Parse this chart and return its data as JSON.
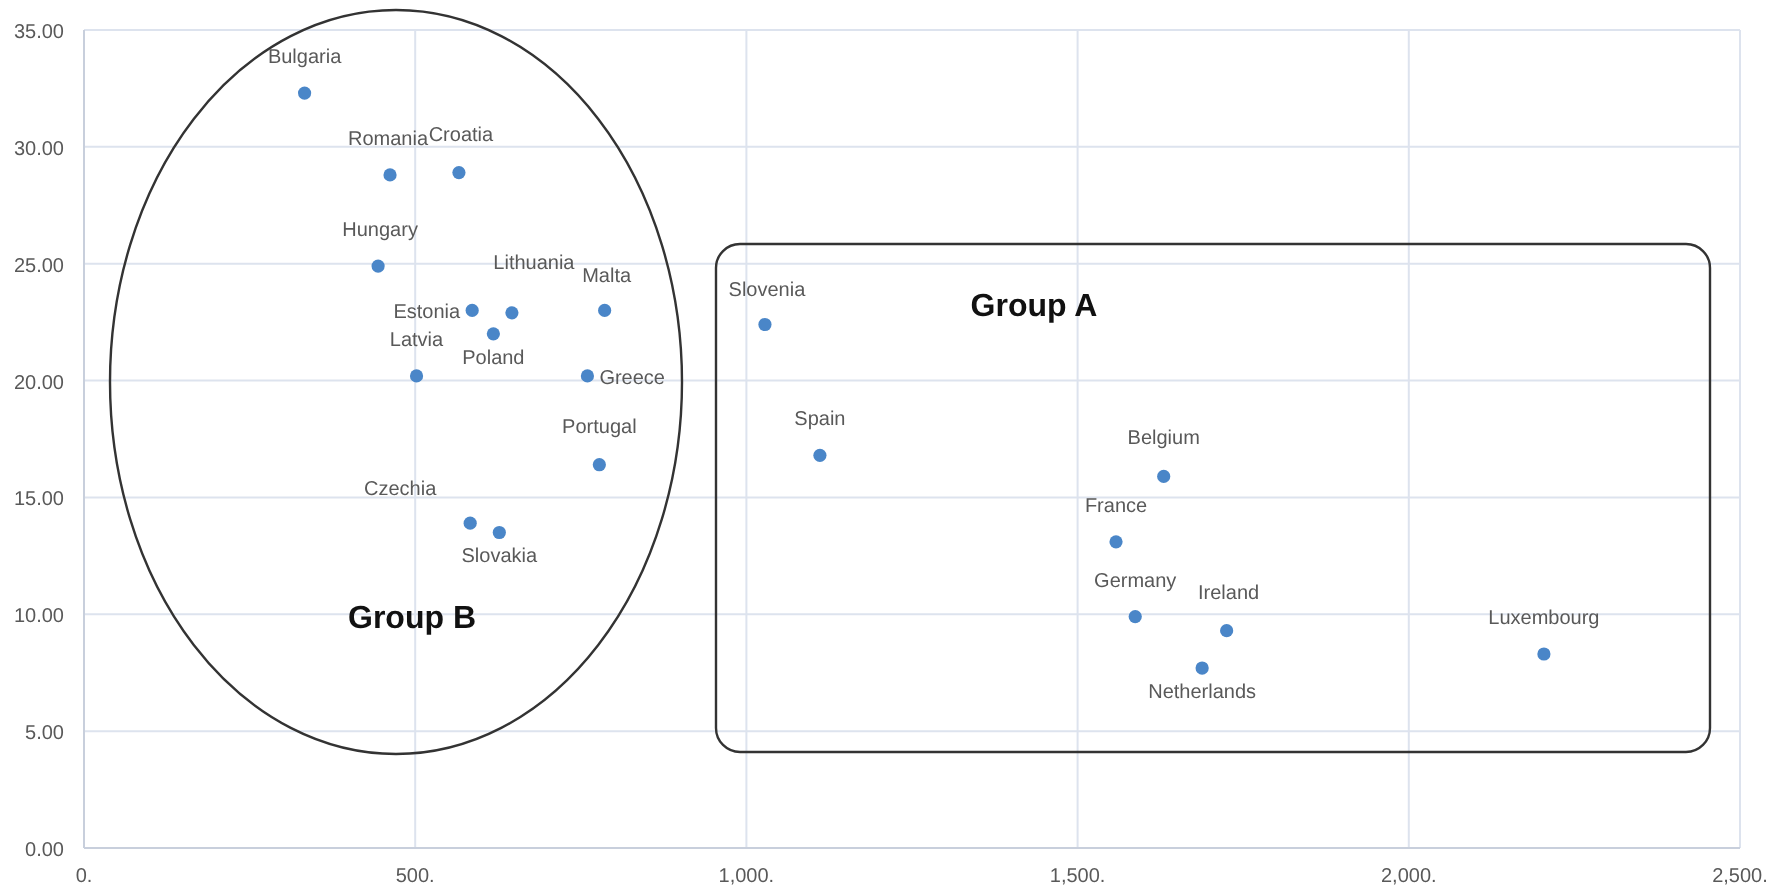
{
  "chart_data": {
    "type": "scatter",
    "series": [
      {
        "name": "Bulgaria",
        "color": "#4a86c8",
        "x": [
          333
        ],
        "values": [
          32.3
        ]
      },
      {
        "name": "Romania",
        "color": "#4a86c8",
        "x": [
          462
        ],
        "values": [
          28.8
        ]
      },
      {
        "name": "Croatia",
        "color": "#4a86c8",
        "x": [
          566
        ],
        "values": [
          28.9
        ]
      },
      {
        "name": "Hungary",
        "color": "#4a86c8",
        "x": [
          444
        ],
        "values": [
          24.9
        ]
      },
      {
        "name": "Estonia",
        "color": "#4a86c8",
        "x": [
          586
        ],
        "values": [
          23.0
        ]
      },
      {
        "name": "Lithuania",
        "color": "#4a86c8",
        "x": [
          646
        ],
        "values": [
          22.9
        ]
      },
      {
        "name": "Poland",
        "color": "#4a86c8",
        "x": [
          618
        ],
        "values": [
          22.0
        ]
      },
      {
        "name": "Malta",
        "color": "#4a86c8",
        "x": [
          786
        ],
        "values": [
          23.0
        ]
      },
      {
        "name": "Latvia",
        "color": "#4a86c8",
        "x": [
          502
        ],
        "values": [
          20.2
        ]
      },
      {
        "name": "Greece",
        "color": "#4a86c8",
        "x": [
          760
        ],
        "values": [
          20.2
        ]
      },
      {
        "name": "Portugal",
        "color": "#4a86c8",
        "x": [
          778
        ],
        "values": [
          16.4
        ]
      },
      {
        "name": "Czechia",
        "color": "#4a86c8",
        "x": [
          583
        ],
        "values": [
          13.9
        ]
      },
      {
        "name": "Slovakia",
        "color": "#4a86c8",
        "x": [
          627
        ],
        "values": [
          13.5
        ]
      },
      {
        "name": "Slovenia",
        "color": "#4a86c8",
        "x": [
          1028
        ],
        "values": [
          22.4
        ]
      },
      {
        "name": "Spain",
        "color": "#4a86c8",
        "x": [
          1111
        ],
        "values": [
          16.8
        ]
      },
      {
        "name": "Belgium",
        "color": "#4a86c8",
        "x": [
          1630
        ],
        "values": [
          15.9
        ]
      },
      {
        "name": "France",
        "color": "#4a86c8",
        "x": [
          1558
        ],
        "values": [
          13.1
        ]
      },
      {
        "name": "Germany",
        "color": "#4a86c8",
        "x": [
          1587
        ],
        "values": [
          9.9
        ]
      },
      {
        "name": "Ireland",
        "color": "#4a86c8",
        "x": [
          1725
        ],
        "values": [
          9.3
        ]
      },
      {
        "name": "Netherlands",
        "color": "#4a86c8",
        "x": [
          1688
        ],
        "values": [
          7.7
        ]
      },
      {
        "name": "Luxembourg",
        "color": "#4a86c8",
        "x": [
          2204
        ],
        "values": [
          8.3
        ]
      }
    ],
    "marker": "circle",
    "grid": true,
    "xlim": [
      0,
      2500
    ],
    "xticks": [
      {
        "value": 0,
        "label": "0."
      },
      {
        "value": 500,
        "label": "500."
      },
      {
        "value": 1000,
        "label": "1,000."
      },
      {
        "value": 1500,
        "label": "1,500."
      },
      {
        "value": 2000,
        "label": "2,000."
      },
      {
        "value": 2500,
        "label": "2,500."
      }
    ],
    "ylim": [
      0,
      35
    ],
    "yticks": [
      {
        "value": 0,
        "label": "0.00"
      },
      {
        "value": 5,
        "label": "5.00"
      },
      {
        "value": 10,
        "label": "10.00"
      },
      {
        "value": 15,
        "label": "15.00"
      },
      {
        "value": 20,
        "label": "20.00"
      },
      {
        "value": 25,
        "label": "25.00"
      },
      {
        "value": 30,
        "label": "30.00"
      },
      {
        "value": 35,
        "label": "35.00"
      }
    ],
    "annotations": [
      "Group A",
      "Group B"
    ]
  }
}
